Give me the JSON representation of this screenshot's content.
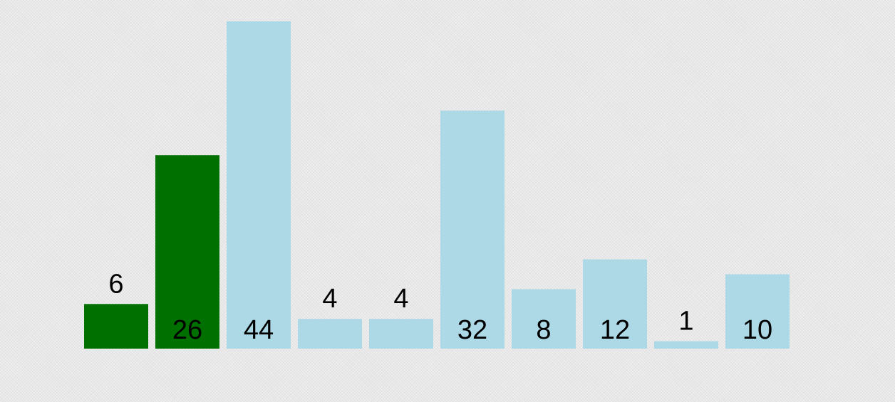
{
  "chart_data": {
    "type": "bar",
    "values": [
      6,
      26,
      44,
      4,
      4,
      32,
      8,
      12,
      1,
      10
    ],
    "highlighted_indices": [
      0,
      1
    ],
    "ylim": [
      0,
      44
    ],
    "grid": false,
    "legend": "none",
    "title": "",
    "xlabel": "",
    "ylabel": ""
  },
  "colors": {
    "highlight": "#007000",
    "default": "#add8e6",
    "label": "#000000"
  }
}
